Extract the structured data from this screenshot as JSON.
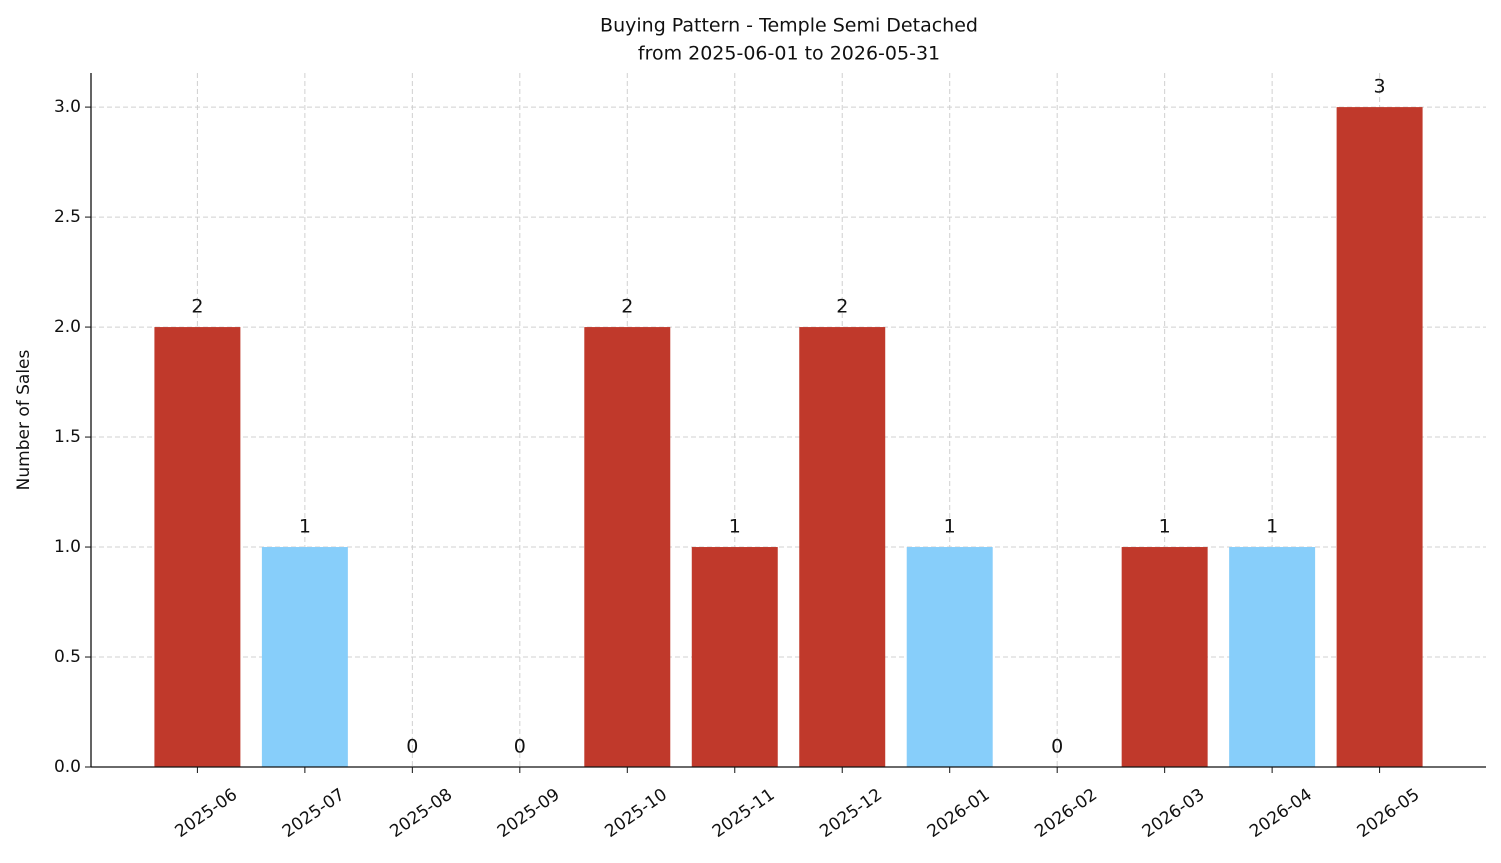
{
  "chart_data": {
    "type": "bar",
    "title": "Buying Pattern - Temple Semi Detached",
    "subtitle": "from 2025-06-01 to 2026-05-31",
    "y_label": "Number of Sales",
    "categories": [
      "2025-06",
      "2025-07",
      "2025-08",
      "2025-09",
      "2025-10",
      "2025-11",
      "2025-12",
      "2026-01",
      "2026-02",
      "2026-03",
      "2026-04",
      "2026-05"
    ],
    "values": [
      2,
      1,
      0,
      0,
      2,
      1,
      2,
      1,
      0,
      1,
      1,
      3
    ],
    "colors": [
      "#c0392b",
      "#87cefa",
      null,
      null,
      "#c0392b",
      "#c0392b",
      "#c0392b",
      "#87cefa",
      null,
      "#c0392b",
      "#87cefa",
      "#c0392b"
    ],
    "ylim": [
      0,
      3.155
    ],
    "yticks": [
      {
        "value": 0,
        "label": "0.0"
      },
      0.5,
      {
        "value": 1,
        "label": "1.0"
      },
      1.5,
      {
        "value": 2,
        "label": "2.0"
      },
      2.5,
      {
        "value": 3,
        "label": "3.0"
      }
    ],
    "grid": true
  }
}
